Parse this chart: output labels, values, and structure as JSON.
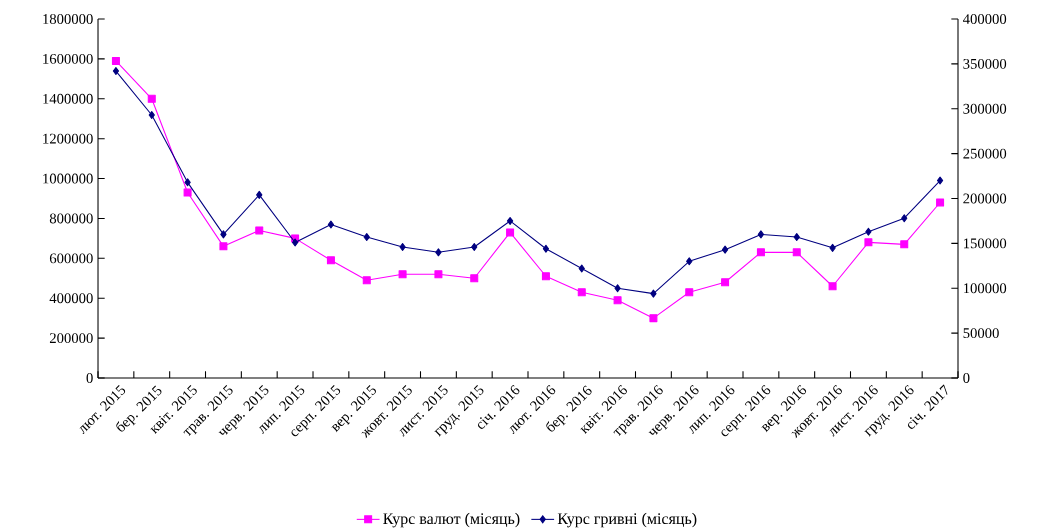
{
  "chart_data": {
    "type": "line",
    "categories": [
      "лют. 2015",
      "бер. 2015",
      "квіт. 2015",
      "трав. 2015",
      "черв. 2015",
      "лип. 2015",
      "серп. 2015",
      "вер. 2015",
      "жовт. 2015",
      "лист. 2015",
      "груд. 2015",
      "січ. 2016",
      "лют. 2016",
      "бер. 2016",
      "квіт. 2016",
      "трав. 2016",
      "черв. 2016",
      "лип. 2016",
      "серп. 2016",
      "вер. 2016",
      "жовт. 2016",
      "лист. 2016",
      "груд. 2016",
      "січ. 2017"
    ],
    "series": [
      {
        "name": "Курс валют (місяць)",
        "color": "#ff00ff",
        "marker": "square",
        "values": [
          1590000,
          1400000,
          930000,
          660000,
          740000,
          700000,
          590000,
          490000,
          520000,
          520000,
          500000,
          730000,
          510000,
          430000,
          390000,
          300000,
          430000,
          480000,
          630000,
          630000,
          460000,
          680000,
          670000,
          880000
        ]
      },
      {
        "name": "Курс гривні (місяць)",
        "color": "#000080",
        "marker": "diamond",
        "axis": "y2",
        "values": [
          342000,
          293000,
          218000,
          160000,
          204000,
          151000,
          171000,
          157000,
          146000,
          140000,
          146000,
          175000,
          144000,
          122000,
          100000,
          94000,
          130000,
          143000,
          160000,
          157000,
          145000,
          163000,
          178000,
          220000
        ]
      }
    ],
    "ylim": [
      0,
      1800000
    ],
    "yticks": [
      0,
      200000,
      400000,
      600000,
      800000,
      1000000,
      1200000,
      1400000,
      1600000,
      1800000
    ],
    "y2lim": [
      0,
      400000
    ],
    "y2ticks": [
      0,
      50000,
      100000,
      150000,
      200000,
      250000,
      300000,
      350000,
      400000
    ],
    "legend": "bottom"
  }
}
